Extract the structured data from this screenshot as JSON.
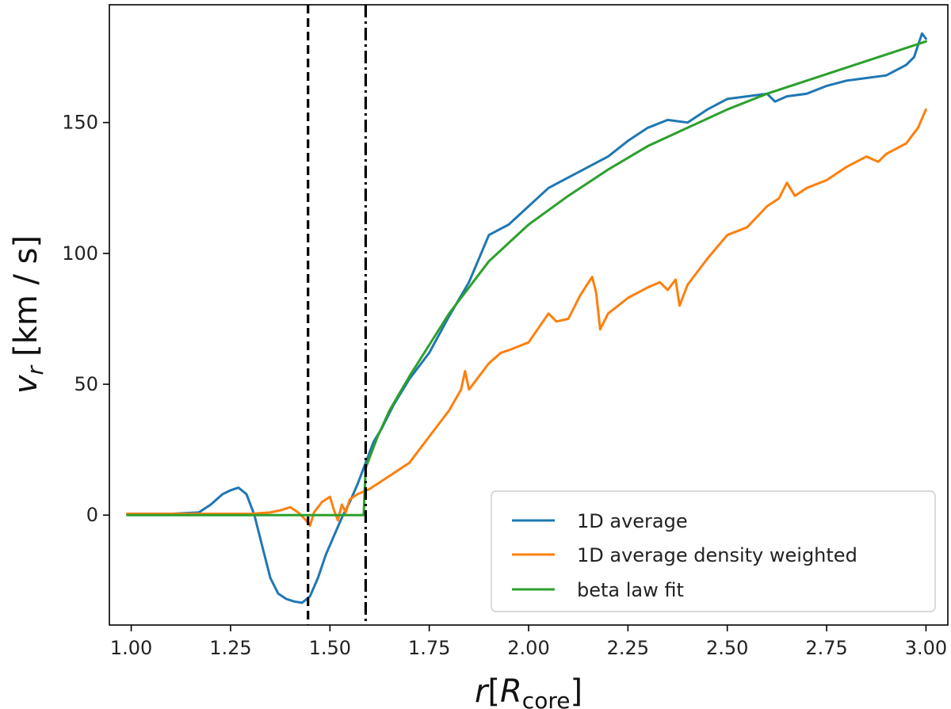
{
  "chart_data": {
    "type": "line",
    "xlabel": {
      "main": "r",
      "bracket_open": "[",
      "symbol": "R",
      "subscript": "core",
      "bracket_close": "]"
    },
    "ylabel": {
      "symbol": "v",
      "subscript": "r",
      "unit": "[km / s]"
    },
    "xlim": [
      0.945,
      3.055
    ],
    "ylim": [
      -42,
      195
    ],
    "xticks": [
      {
        "value": 1.0,
        "label": "1.00"
      },
      {
        "value": 1.25,
        "label": "1.25"
      },
      {
        "value": 1.5,
        "label": "1.50"
      },
      {
        "value": 1.75,
        "label": "1.75"
      },
      {
        "value": 2.0,
        "label": "2.00"
      },
      {
        "value": 2.25,
        "label": "2.25"
      },
      {
        "value": 2.5,
        "label": "2.50"
      },
      {
        "value": 2.75,
        "label": "2.75"
      },
      {
        "value": 3.0,
        "label": "3.00"
      }
    ],
    "yticks": [
      {
        "value": 0,
        "label": "0"
      },
      {
        "value": 50,
        "label": "50"
      },
      {
        "value": 100,
        "label": "100"
      },
      {
        "value": 150,
        "label": "150"
      }
    ],
    "vlines": [
      {
        "name": "dashed-vline",
        "x": 1.445,
        "style": "dashed",
        "color": "#000000"
      },
      {
        "name": "dashdot-vline",
        "x": 1.59,
        "style": "dashdot",
        "color": "#000000"
      }
    ],
    "legend": {
      "placement": "lower-right"
    },
    "series": [
      {
        "name": "1D average",
        "color": "#1f77b4",
        "x": [
          0.99,
          1.1,
          1.17,
          1.2,
          1.23,
          1.25,
          1.27,
          1.29,
          1.31,
          1.33,
          1.35,
          1.37,
          1.39,
          1.41,
          1.43,
          1.45,
          1.47,
          1.49,
          1.51,
          1.53,
          1.55,
          1.57,
          1.59,
          1.61,
          1.63,
          1.66,
          1.7,
          1.75,
          1.8,
          1.85,
          1.9,
          1.95,
          2.0,
          2.05,
          2.1,
          2.15,
          2.2,
          2.25,
          2.3,
          2.35,
          2.4,
          2.45,
          2.5,
          2.55,
          2.6,
          2.62,
          2.65,
          2.7,
          2.75,
          2.8,
          2.85,
          2.9,
          2.95,
          2.97,
          2.99,
          3.0
        ],
        "y": [
          0.5,
          0.5,
          1.0,
          4.0,
          8.0,
          9.5,
          10.5,
          8.0,
          0.0,
          -12.0,
          -24.0,
          -30.0,
          -32.0,
          -33.0,
          -33.5,
          -31.0,
          -24.0,
          -15.0,
          -8.0,
          -1.0,
          5.0,
          12.0,
          20.0,
          28.0,
          33.0,
          42.0,
          52.0,
          62.0,
          76.0,
          89.0,
          107.0,
          111.0,
          118.0,
          125.0,
          129.0,
          133.0,
          137.0,
          143.0,
          148.0,
          151.0,
          150.0,
          155.0,
          159.0,
          160.0,
          161.0,
          158.0,
          160.0,
          161.0,
          164.0,
          166.0,
          167.0,
          168.0,
          172.0,
          175.0,
          184.0,
          182.0
        ]
      },
      {
        "name": "1D average density weighted",
        "color": "#ff7f0e",
        "x": [
          0.99,
          1.3,
          1.35,
          1.38,
          1.4,
          1.42,
          1.44,
          1.45,
          1.46,
          1.48,
          1.5,
          1.51,
          1.52,
          1.53,
          1.54,
          1.55,
          1.57,
          1.6,
          1.65,
          1.7,
          1.75,
          1.8,
          1.83,
          1.84,
          1.85,
          1.9,
          1.93,
          1.95,
          2.0,
          2.05,
          2.07,
          2.1,
          2.13,
          2.16,
          2.17,
          2.18,
          2.2,
          2.25,
          2.3,
          2.33,
          2.35,
          2.37,
          2.38,
          2.4,
          2.45,
          2.5,
          2.55,
          2.6,
          2.63,
          2.65,
          2.67,
          2.7,
          2.75,
          2.8,
          2.85,
          2.88,
          2.9,
          2.95,
          2.98,
          3.0
        ],
        "y": [
          0.5,
          0.5,
          1.0,
          2.0,
          3.0,
          1.0,
          -2.0,
          -4.0,
          1.0,
          5.0,
          7.0,
          2.0,
          -2.0,
          4.0,
          1.0,
          6.0,
          8.0,
          10.0,
          15.0,
          20.0,
          30.0,
          40.0,
          48.0,
          55.0,
          48.0,
          58.0,
          62.0,
          63.0,
          66.0,
          77.0,
          74.0,
          75.0,
          84.0,
          91.0,
          85.0,
          71.0,
          77.0,
          83.0,
          87.0,
          89.0,
          86.0,
          90.0,
          80.0,
          88.0,
          98.0,
          107.0,
          110.0,
          118.0,
          121.0,
          127.0,
          122.0,
          125.0,
          128.0,
          133.0,
          137.0,
          135.0,
          138.0,
          142.0,
          148.0,
          155.0
        ]
      },
      {
        "name": "beta law fit",
        "color": "#2ca02c",
        "x": [
          0.99,
          1.2,
          1.4,
          1.585,
          1.59,
          1.6,
          1.62,
          1.65,
          1.7,
          1.75,
          1.8,
          1.9,
          2.0,
          2.1,
          2.2,
          2.3,
          2.4,
          2.5,
          2.6,
          2.7,
          2.8,
          2.9,
          3.0
        ],
        "y": [
          0.0,
          0.0,
          0.0,
          0.0,
          18.0,
          22.0,
          30.0,
          40.0,
          53.0,
          65.0,
          77.0,
          97.0,
          111.0,
          122.0,
          132.0,
          141.0,
          148.0,
          155.0,
          161.0,
          166.0,
          171.0,
          176.0,
          181.0
        ]
      }
    ]
  }
}
